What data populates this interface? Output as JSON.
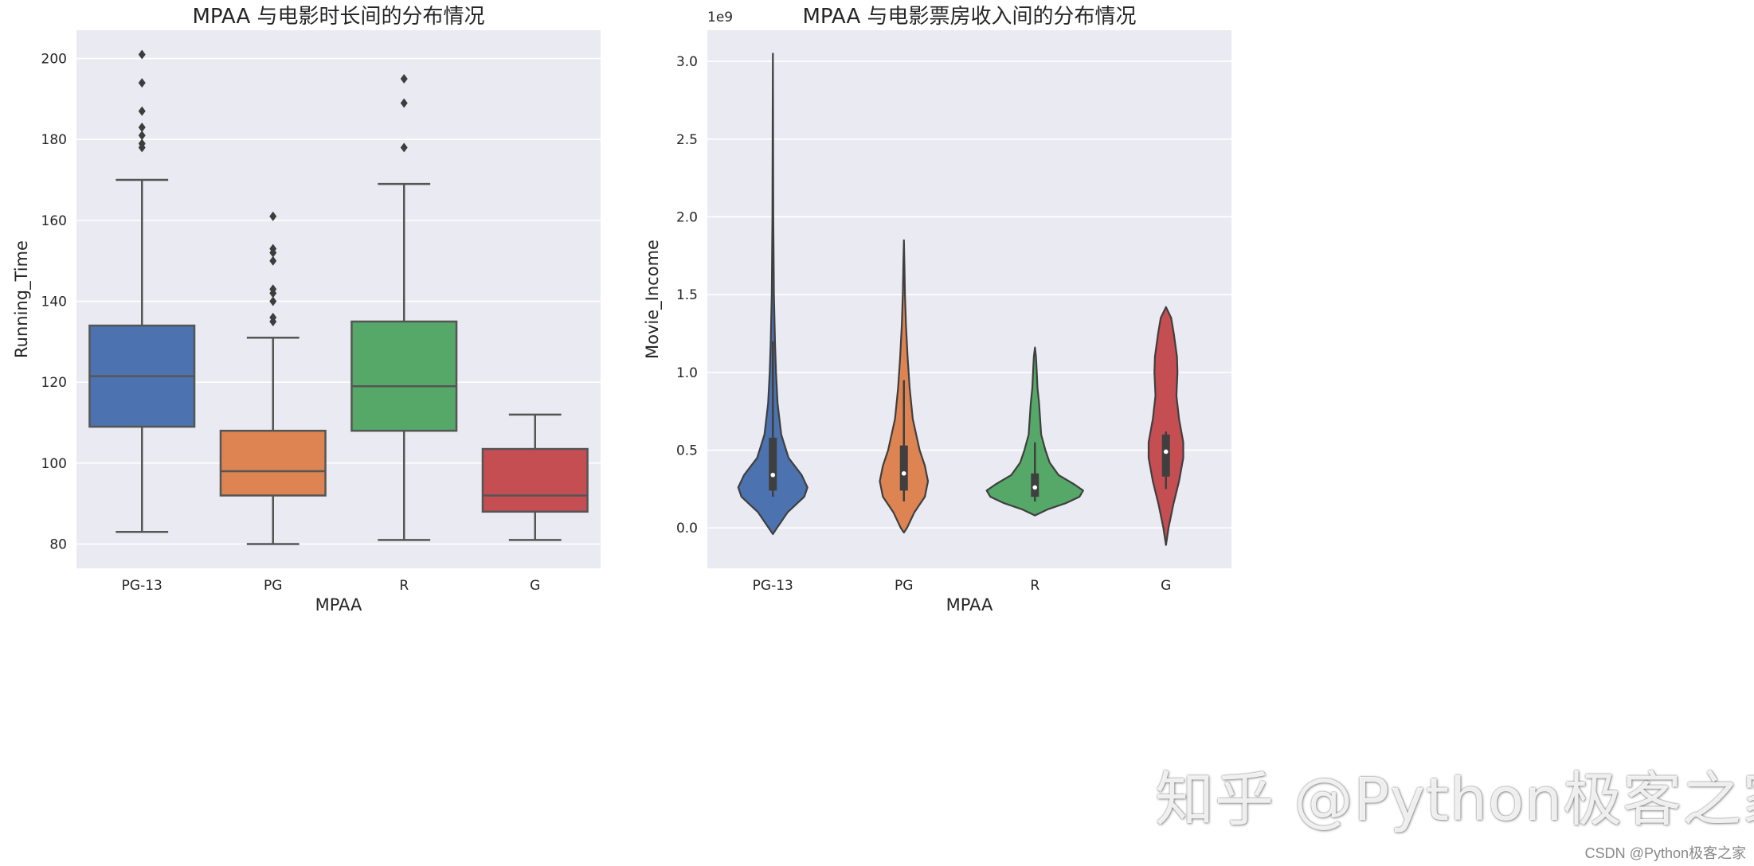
{
  "chart_data": [
    {
      "type": "box",
      "title": "MPAA 与电影时长间的分布情况",
      "xlabel": "MPAA",
      "ylabel": "Running_Time",
      "ylim": [
        74,
        207
      ],
      "yticks": [
        80,
        100,
        120,
        140,
        160,
        180,
        200
      ],
      "categories": [
        "PG-13",
        "PG",
        "R",
        "G"
      ],
      "series": [
        {
          "name": "PG-13",
          "color": "#4c72b0",
          "whisker_low": 83,
          "q1": 109,
          "median": 121.5,
          "q3": 134,
          "whisker_high": 170,
          "outliers": [
            178,
            179,
            181,
            183,
            187,
            194,
            201
          ]
        },
        {
          "name": "PG",
          "color": "#dd8452",
          "whisker_low": 80,
          "q1": 92,
          "median": 98,
          "q3": 108,
          "whisker_high": 131,
          "outliers": [
            135,
            136,
            140,
            142,
            143,
            150,
            152,
            153,
            161
          ]
        },
        {
          "name": "R",
          "color": "#55a868",
          "whisker_low": 81,
          "q1": 108,
          "median": 119,
          "q3": 135,
          "whisker_high": 169,
          "outliers": [
            178,
            189,
            195
          ]
        },
        {
          "name": "G",
          "color": "#c44e52",
          "whisker_low": 81,
          "q1": 88,
          "median": 92,
          "q3": 103.5,
          "whisker_high": 112,
          "outliers": []
        }
      ]
    },
    {
      "type": "violin",
      "title": "MPAA 与电影票房收入间的分布情况",
      "xlabel": "MPAA",
      "ylabel": "Movie_Income",
      "y_offset_label": "1e9",
      "ylim": [
        -0.26,
        3.2
      ],
      "yticks": [
        0.0,
        0.5,
        1.0,
        1.5,
        2.0,
        2.5,
        3.0
      ],
      "ytick_labels": [
        "0.0",
        "0.5",
        "1.0",
        "1.5",
        "2.0",
        "2.5",
        "3.0"
      ],
      "categories": [
        "PG-13",
        "PG",
        "R",
        "G"
      ],
      "series": [
        {
          "name": "PG-13",
          "color": "#4c72b0",
          "q1": 0.24,
          "median": 0.34,
          "q3": 0.58,
          "whisker_low": 0.2,
          "whisker_high": 1.2,
          "profile": [
            [
              -0.04,
              0.0
            ],
            [
              0.0,
              0.08
            ],
            [
              0.1,
              0.28
            ],
            [
              0.2,
              0.6
            ],
            [
              0.26,
              0.66
            ],
            [
              0.34,
              0.55
            ],
            [
              0.45,
              0.3
            ],
            [
              0.6,
              0.16
            ],
            [
              0.8,
              0.09
            ],
            [
              1.0,
              0.06
            ],
            [
              1.2,
              0.04
            ],
            [
              1.5,
              0.02
            ],
            [
              2.0,
              0.008
            ],
            [
              2.6,
              0.004
            ],
            [
              3.05,
              0.0
            ]
          ]
        },
        {
          "name": "PG",
          "color": "#dd8452",
          "q1": 0.24,
          "median": 0.35,
          "q3": 0.53,
          "whisker_low": 0.17,
          "whisker_high": 0.95,
          "profile": [
            [
              -0.03,
              0.0
            ],
            [
              0.0,
              0.06
            ],
            [
              0.1,
              0.2
            ],
            [
              0.2,
              0.4
            ],
            [
              0.3,
              0.46
            ],
            [
              0.4,
              0.4
            ],
            [
              0.5,
              0.3
            ],
            [
              0.7,
              0.17
            ],
            [
              0.9,
              0.11
            ],
            [
              1.1,
              0.07
            ],
            [
              1.3,
              0.04
            ],
            [
              1.5,
              0.02
            ],
            [
              1.7,
              0.01
            ],
            [
              1.85,
              0.0
            ]
          ]
        },
        {
          "name": "R",
          "color": "#55a868",
          "q1": 0.2,
          "median": 0.26,
          "q3": 0.35,
          "whisker_low": 0.17,
          "whisker_high": 0.55,
          "profile": [
            [
              0.08,
              0.0
            ],
            [
              0.12,
              0.25
            ],
            [
              0.16,
              0.6
            ],
            [
              0.2,
              0.85
            ],
            [
              0.24,
              0.92
            ],
            [
              0.28,
              0.75
            ],
            [
              0.34,
              0.45
            ],
            [
              0.42,
              0.28
            ],
            [
              0.5,
              0.2
            ],
            [
              0.6,
              0.12
            ],
            [
              0.7,
              0.1
            ],
            [
              0.8,
              0.08
            ],
            [
              0.9,
              0.05
            ],
            [
              1.0,
              0.035
            ],
            [
              1.1,
              0.02
            ],
            [
              1.16,
              0.0
            ]
          ]
        },
        {
          "name": "G",
          "color": "#c44e52",
          "q1": 0.33,
          "median": 0.49,
          "q3": 0.6,
          "whisker_low": 0.25,
          "whisker_high": 0.62,
          "profile": [
            [
              -0.11,
              0.0
            ],
            [
              0.0,
              0.05
            ],
            [
              0.15,
              0.14
            ],
            [
              0.3,
              0.25
            ],
            [
              0.45,
              0.33
            ],
            [
              0.55,
              0.33
            ],
            [
              0.7,
              0.25
            ],
            [
              0.85,
              0.2
            ],
            [
              1.0,
              0.22
            ],
            [
              1.1,
              0.21
            ],
            [
              1.25,
              0.15
            ],
            [
              1.35,
              0.1
            ],
            [
              1.42,
              0.0
            ]
          ]
        }
      ]
    }
  ],
  "watermark": "知乎 @Python极客之家",
  "credit": "CSDN @Python极客之家"
}
